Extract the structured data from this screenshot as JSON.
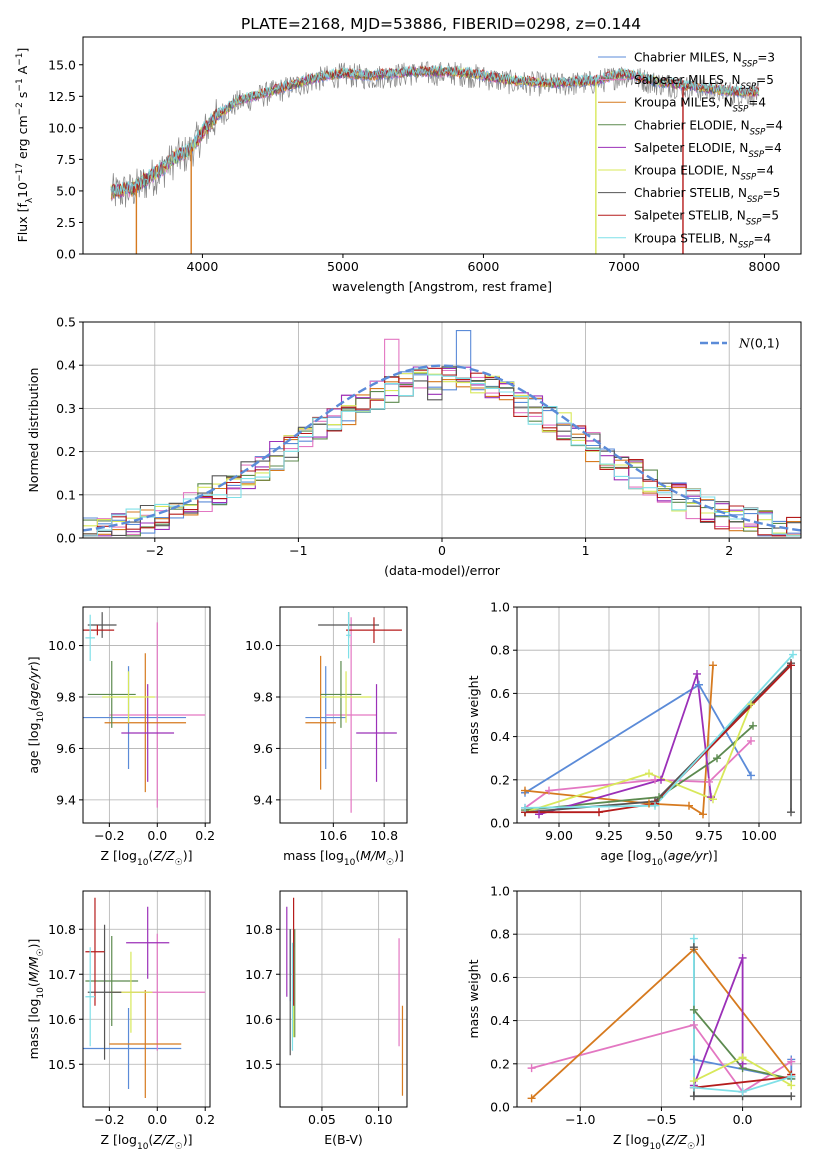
{
  "figure": {
    "title": "PLATE=2168, MJD=53886, FIBERID=0298, z=0.144"
  },
  "legend_entries": [
    {
      "label": "Chabrier MILES, N$_{SSP}$=3",
      "text": "Chabrier MILES, N",
      "sub": "SSP",
      "suffix": "=3",
      "color": "#5b8bd8"
    },
    {
      "label": "Salpeter MILES, N$_{SSP}$=5",
      "text": "Salpeter MILES, N",
      "sub": "SSP",
      "suffix": "=5",
      "color": "#e377c2"
    },
    {
      "label": "Kroupa MILES, N$_{SSP}$=4",
      "text": "Kroupa MILES, N",
      "sub": "SSP",
      "suffix": "=4",
      "color": "#d67a1f"
    },
    {
      "label": "Chabrier ELODIE, N$_{SSP}$=4",
      "text": "Chabrier ELODIE, N",
      "sub": "SSP",
      "suffix": "=4",
      "color": "#5c8a4f"
    },
    {
      "label": "Salpeter ELODIE, N$_{SSP}$=4",
      "text": "Salpeter ELODIE, N",
      "sub": "SSP",
      "suffix": "=4",
      "color": "#9b30b8"
    },
    {
      "label": "Kroupa ELODIE, N$_{SSP}$=4",
      "text": "Kroupa ELODIE, N",
      "sub": "SSP",
      "suffix": "=4",
      "color": "#d8e85a"
    },
    {
      "label": "Chabrier STELIB, N$_{SSP}$=5",
      "text": "Chabrier STELIB, N",
      "sub": "SSP",
      "suffix": "=5",
      "color": "#555555"
    },
    {
      "label": "Salpeter STELIB, N$_{SSP}$=5",
      "text": "Salpeter STELIB, N",
      "sub": "SSP",
      "suffix": "=5",
      "color": "#b51c1c"
    },
    {
      "label": "Kroupa STELIB, N$_{SSP}$=4",
      "text": "Kroupa STELIB, N",
      "sub": "SSP",
      "suffix": "=4",
      "color": "#7fe0e8"
    }
  ],
  "chart_data": [
    {
      "id": "spectrum",
      "type": "line",
      "title": "PLATE=2168, MJD=53886, FIBERID=0298, z=0.144",
      "xlabel": "wavelength [Angstrom, rest frame]",
      "ylabel": "Flux [f_λ 10^-17 erg cm^-2 s^-1 A^-1]",
      "xlim": [
        3150,
        8260
      ],
      "ylim": [
        0,
        17.2
      ],
      "xticks": [
        4000,
        5000,
        6000,
        7000,
        8000
      ],
      "yticks": [
        0.0,
        2.5,
        5.0,
        7.5,
        10.0,
        12.5,
        15.0
      ],
      "grid": false,
      "legend_position": "upper right",
      "data_range": [
        3350,
        7960
      ],
      "continuum": {
        "x": [
          3350,
          3500,
          3700,
          3800,
          3900,
          4000,
          4100,
          4250,
          4500,
          4800,
          5000,
          5200,
          5500,
          5800,
          6000,
          6200,
          6500,
          6800,
          7000,
          7200,
          7500,
          7800,
          7960
        ],
        "y": [
          4.8,
          5.0,
          6.5,
          7.5,
          8.0,
          9.5,
          10.8,
          12.0,
          12.8,
          13.8,
          14.2,
          14.0,
          14.3,
          14.3,
          14.0,
          13.6,
          13.4,
          13.6,
          14.2,
          13.6,
          13.1,
          12.7,
          12.7
        ]
      },
      "series": [
        {
          "name": "data",
          "color": "#808080",
          "role": "data"
        },
        {
          "name": "Chabrier MILES",
          "color": "#5b8bd8"
        },
        {
          "name": "Salpeter MILES",
          "color": "#e377c2"
        },
        {
          "name": "Kroupa MILES",
          "color": "#d67a1f"
        },
        {
          "name": "Chabrier ELODIE",
          "color": "#5c8a4f"
        },
        {
          "name": "Salpeter ELODIE",
          "color": "#9b30b8"
        },
        {
          "name": "Kroupa ELODIE",
          "color": "#d8e85a"
        },
        {
          "name": "Chabrier STELIB",
          "color": "#555555"
        },
        {
          "name": "Salpeter STELIB",
          "color": "#b51c1c"
        },
        {
          "name": "Kroupa STELIB",
          "color": "#7fe0e8"
        }
      ],
      "drops": [
        {
          "x": 3530,
          "color": "#d67a1f"
        },
        {
          "x": 3920,
          "color": "#d67a1f"
        },
        {
          "x": 6800,
          "color": "#d8e85a"
        },
        {
          "x": 7420,
          "color": "#b51c1c"
        }
      ]
    },
    {
      "id": "residual_hist",
      "type": "line",
      "xlabel": "(data-model)/error",
      "ylabel": "Normed distribution",
      "xlim": [
        -2.5,
        2.5
      ],
      "ylim": [
        0,
        0.5
      ],
      "xticks": [
        -2,
        -1,
        0,
        1,
        2
      ],
      "yticks": [
        0.0,
        0.1,
        0.2,
        0.3,
        0.4,
        0.5
      ],
      "grid": true,
      "legend_position": "upper right",
      "reference": {
        "name": "N(0,1)",
        "color": "#5b8bd8",
        "style": "dashed"
      },
      "bin_width": 0.1,
      "step_colors": [
        "#5b8bd8",
        "#e377c2",
        "#d67a1f",
        "#5c8a4f",
        "#9b30b8",
        "#d8e85a",
        "#555555",
        "#b51c1c",
        "#7fe0e8"
      ],
      "highlights": [
        {
          "x0": -0.4,
          "x1": -0.3,
          "y": 0.46,
          "color": "#e377c2"
        },
        {
          "x0": 0.1,
          "x1": 0.2,
          "y": 0.48,
          "color": "#5b8bd8"
        },
        {
          "x0": -0.1,
          "x1": 0.0,
          "y": 0.32,
          "color": "#555555"
        }
      ]
    },
    {
      "id": "age_vs_Z",
      "type": "scatter",
      "errorbars": true,
      "xlabel": "Z [log10(Z/Z☉)]",
      "ylabel": "age [log10(age/yr)]",
      "xlim": [
        -0.31,
        0.22
      ],
      "ylim": [
        9.31,
        10.15
      ],
      "xticks": [
        -0.2,
        0.0,
        0.2
      ],
      "yticks": [
        9.4,
        9.6,
        9.8,
        10.0
      ],
      "grid": true,
      "points": [
        {
          "color": "#5b8bd8",
          "x": -0.12,
          "y": 9.72,
          "xerr": 0.24,
          "yerr": 0.2
        },
        {
          "color": "#e377c2",
          "x": 0.0,
          "y": 9.73,
          "xerr": 0.2,
          "yerr": 0.36
        },
        {
          "color": "#d67a1f",
          "x": -0.05,
          "y": 9.7,
          "xerr": 0.17,
          "yerr": 0.27
        },
        {
          "color": "#5c8a4f",
          "x": -0.19,
          "y": 9.81,
          "xerr": 0.1,
          "yerr": 0.13
        },
        {
          "color": "#9b30b8",
          "x": -0.04,
          "y": 9.66,
          "xerr": 0.11,
          "yerr": 0.19
        },
        {
          "color": "#d8e85a",
          "x": -0.12,
          "y": 9.8,
          "xerr": 0.11,
          "yerr": 0.1
        },
        {
          "color": "#555555",
          "x": -0.23,
          "y": 10.08,
          "xerr": 0.06,
          "yerr": 0.05
        },
        {
          "color": "#b51c1c",
          "x": -0.25,
          "y": 10.06,
          "xerr": 0.07,
          "yerr": 0.02
        },
        {
          "color": "#7fe0e8",
          "x": -0.28,
          "y": 10.03,
          "xerr": 0.02,
          "yerr": 0.09
        }
      ]
    },
    {
      "id": "age_vs_mass",
      "type": "scatter",
      "errorbars": true,
      "xlabel": "mass [log10(M/M☉)]",
      "ylabel": "",
      "xlim": [
        10.39,
        10.89
      ],
      "ylim": [
        9.31,
        10.15
      ],
      "xticks": [
        10.6,
        10.8
      ],
      "yticks": [
        9.4,
        9.6,
        9.8,
        10.0
      ],
      "grid": true,
      "points": [
        {
          "color": "#5b8bd8",
          "x": 10.57,
          "y": 9.72,
          "xerr": 0.08,
          "yerr": 0.2
        },
        {
          "color": "#e377c2",
          "x": 10.67,
          "y": 9.73,
          "xerr": 0.1,
          "yerr": 0.38
        },
        {
          "color": "#d67a1f",
          "x": 10.55,
          "y": 9.7,
          "xerr": 0.06,
          "yerr": 0.26
        },
        {
          "color": "#5c8a4f",
          "x": 10.63,
          "y": 9.81,
          "xerr": 0.08,
          "yerr": 0.13
        },
        {
          "color": "#9b30b8",
          "x": 10.77,
          "y": 9.66,
          "xerr": 0.08,
          "yerr": 0.19
        },
        {
          "color": "#d8e85a",
          "x": 10.65,
          "y": 9.8,
          "xerr": 0.1,
          "yerr": 0.1
        },
        {
          "color": "#555555",
          "x": 10.66,
          "y": 10.08,
          "xerr": 0.12,
          "yerr": 0.05
        },
        {
          "color": "#b51c1c",
          "x": 10.76,
          "y": 10.06,
          "xerr": 0.11,
          "yerr": 0.05
        },
        {
          "color": "#7fe0e8",
          "x": 10.66,
          "y": 10.04,
          "xerr": 0.01,
          "yerr": 0.09
        }
      ]
    },
    {
      "id": "weight_vs_age",
      "type": "line",
      "markers": "+",
      "xlabel": "age [log10(age/yr)]",
      "ylabel": "mass weight",
      "xlim": [
        8.79,
        10.21
      ],
      "ylim": [
        0.0,
        1.0
      ],
      "xticks": [
        9.0,
        9.25,
        9.5,
        9.75,
        10.0
      ],
      "yticks": [
        0.0,
        0.2,
        0.4,
        0.6,
        0.8,
        1.0
      ],
      "grid": true,
      "series": [
        {
          "color": "#5b8bd8",
          "x": [
            8.83,
            9.7,
            9.96
          ],
          "y": [
            0.14,
            0.64,
            0.22
          ]
        },
        {
          "color": "#e377c2",
          "x": [
            8.83,
            8.95,
            9.48,
            9.75,
            9.96
          ],
          "y": [
            0.07,
            0.15,
            0.2,
            0.19,
            0.38
          ]
        },
        {
          "color": "#d67a1f",
          "x": [
            8.83,
            9.45,
            9.65,
            9.72,
            9.77
          ],
          "y": [
            0.15,
            0.09,
            0.08,
            0.04,
            0.73
          ]
        },
        {
          "color": "#5c8a4f",
          "x": [
            8.83,
            9.5,
            9.79,
            9.97
          ],
          "y": [
            0.06,
            0.12,
            0.3,
            0.45
          ]
        },
        {
          "color": "#9b30b8",
          "x": [
            8.9,
            9.51,
            9.69,
            9.76
          ],
          "y": [
            0.04,
            0.2,
            0.69,
            0.12
          ]
        },
        {
          "color": "#d8e85a",
          "x": [
            8.83,
            9.45,
            9.77,
            9.96
          ],
          "y": [
            0.05,
            0.23,
            0.11,
            0.55
          ]
        },
        {
          "color": "#555555",
          "x": [
            8.83,
            9.48,
            10.16,
            10.16
          ],
          "y": [
            0.05,
            0.1,
            0.74,
            0.05
          ]
        },
        {
          "color": "#b51c1c",
          "x": [
            8.83,
            9.2,
            9.48,
            10.16
          ],
          "y": [
            0.05,
            0.05,
            0.09,
            0.73
          ]
        },
        {
          "color": "#7fe0e8",
          "x": [
            8.83,
            9.48,
            10.17
          ],
          "y": [
            0.07,
            0.08,
            0.78
          ]
        }
      ]
    },
    {
      "id": "mass_vs_Z",
      "type": "scatter",
      "errorbars": true,
      "xlabel": "Z [log10(Z/Z☉)]",
      "ylabel": "mass [log10(M/M☉)]",
      "xlim": [
        -0.31,
        0.22
      ],
      "ylim": [
        10.405,
        10.885
      ],
      "xticks": [
        -0.2,
        0.0,
        0.2
      ],
      "yticks": [
        10.5,
        10.6,
        10.7,
        10.8
      ],
      "grid": true,
      "points": [
        {
          "color": "#5b8bd8",
          "x": -0.12,
          "y": 10.535,
          "xerr": 0.22,
          "yerr": 0.09
        },
        {
          "color": "#e377c2",
          "x": 0.0,
          "y": 10.66,
          "xerr": 0.2,
          "yerr": 0.13
        },
        {
          "color": "#d67a1f",
          "x": -0.05,
          "y": 10.545,
          "xerr": 0.15,
          "yerr": 0.12
        },
        {
          "color": "#5c8a4f",
          "x": -0.19,
          "y": 10.685,
          "xerr": 0.11,
          "yerr": 0.1
        },
        {
          "color": "#9b30b8",
          "x": -0.04,
          "y": 10.77,
          "xerr": 0.09,
          "yerr": 0.08
        },
        {
          "color": "#d8e85a",
          "x": -0.11,
          "y": 10.66,
          "xerr": 0.09,
          "yerr": 0.09
        },
        {
          "color": "#555555",
          "x": -0.22,
          "y": 10.66,
          "xerr": 0.07,
          "yerr": 0.15
        },
        {
          "color": "#b51c1c",
          "x": -0.26,
          "y": 10.75,
          "xerr": 0.04,
          "yerr": 0.12
        },
        {
          "color": "#7fe0e8",
          "x": -0.28,
          "y": 10.65,
          "xerr": 0.02,
          "yerr": 0.11
        }
      ]
    },
    {
      "id": "mass_vs_ebv",
      "type": "scatter",
      "errorbars": true,
      "xlabel": "E(B-V)",
      "ylabel": "",
      "xlim": [
        0.013,
        0.125
      ],
      "ylim": [
        10.405,
        10.885
      ],
      "xticks": [
        0.05,
        0.1
      ],
      "yticks": [
        10.5,
        10.6,
        10.7,
        10.8
      ],
      "grid": true,
      "points": [
        {
          "color": "#5b8bd8",
          "x": 0.022,
          "y": 10.72,
          "xerr": 0.0,
          "yerr": 0.08
        },
        {
          "color": "#e377c2",
          "x": 0.118,
          "y": 10.66,
          "xerr": 0.0,
          "yerr": 0.12
        },
        {
          "color": "#d67a1f",
          "x": 0.121,
          "y": 10.53,
          "xerr": 0.0,
          "yerr": 0.1
        },
        {
          "color": "#5c8a4f",
          "x": 0.026,
          "y": 10.68,
          "xerr": 0.0,
          "yerr": 0.12
        },
        {
          "color": "#9b30b8",
          "x": 0.019,
          "y": 10.75,
          "xerr": 0.0,
          "yerr": 0.1
        },
        {
          "color": "#d8e85a",
          "x": 0.025,
          "y": 10.66,
          "xerr": 0.0,
          "yerr": 0.1
        },
        {
          "color": "#555555",
          "x": 0.022,
          "y": 10.66,
          "xerr": 0.0,
          "yerr": 0.14
        },
        {
          "color": "#b51c1c",
          "x": 0.025,
          "y": 10.75,
          "xerr": 0.0,
          "yerr": 0.12
        },
        {
          "color": "#7fe0e8",
          "x": 0.024,
          "y": 10.65,
          "xerr": 0.0,
          "yerr": 0.12
        }
      ]
    },
    {
      "id": "weight_vs_Z",
      "type": "line",
      "markers": "+",
      "xlabel": "Z [log10(Z/Z☉)]",
      "ylabel": "mass weight",
      "xlim": [
        -1.39,
        0.36
      ],
      "ylim": [
        0.0,
        1.0
      ],
      "xticks": [
        -1.0,
        -0.5,
        0.0
      ],
      "yticks": [
        0.0,
        0.2,
        0.4,
        0.6,
        0.8,
        1.0
      ],
      "grid": true,
      "series": [
        {
          "color": "#5b8bd8",
          "x": [
            -0.3,
            0.3,
            0.3
          ],
          "y": [
            0.22,
            0.13,
            0.22
          ]
        },
        {
          "color": "#e377c2",
          "x": [
            -1.3,
            -0.3,
            0.0,
            0.3
          ],
          "y": [
            0.18,
            0.38,
            0.07,
            0.21
          ]
        },
        {
          "color": "#d67a1f",
          "x": [
            -1.3,
            -0.3,
            0.3
          ],
          "y": [
            0.04,
            0.73,
            0.15
          ]
        },
        {
          "color": "#5c8a4f",
          "x": [
            -0.3,
            0.0,
            0.3
          ],
          "y": [
            0.45,
            0.18,
            0.13
          ]
        },
        {
          "color": "#9b30b8",
          "x": [
            -0.3,
            0.0,
            0.0
          ],
          "y": [
            0.1,
            0.69,
            0.2
          ]
        },
        {
          "color": "#d8e85a",
          "x": [
            -0.3,
            0.0,
            0.3
          ],
          "y": [
            0.12,
            0.23,
            0.1
          ]
        },
        {
          "color": "#555555",
          "x": [
            -0.3,
            -0.3,
            0.0,
            0.3
          ],
          "y": [
            0.74,
            0.05,
            0.05,
            0.05
          ]
        },
        {
          "color": "#b51c1c",
          "x": [
            -0.3,
            0.3,
            0.3
          ],
          "y": [
            0.09,
            0.14,
            0.15
          ]
        },
        {
          "color": "#7fe0e8",
          "x": [
            -0.3,
            -0.3,
            0.0,
            0.3
          ],
          "y": [
            0.78,
            0.09,
            0.07,
            0.14
          ]
        }
      ]
    }
  ]
}
